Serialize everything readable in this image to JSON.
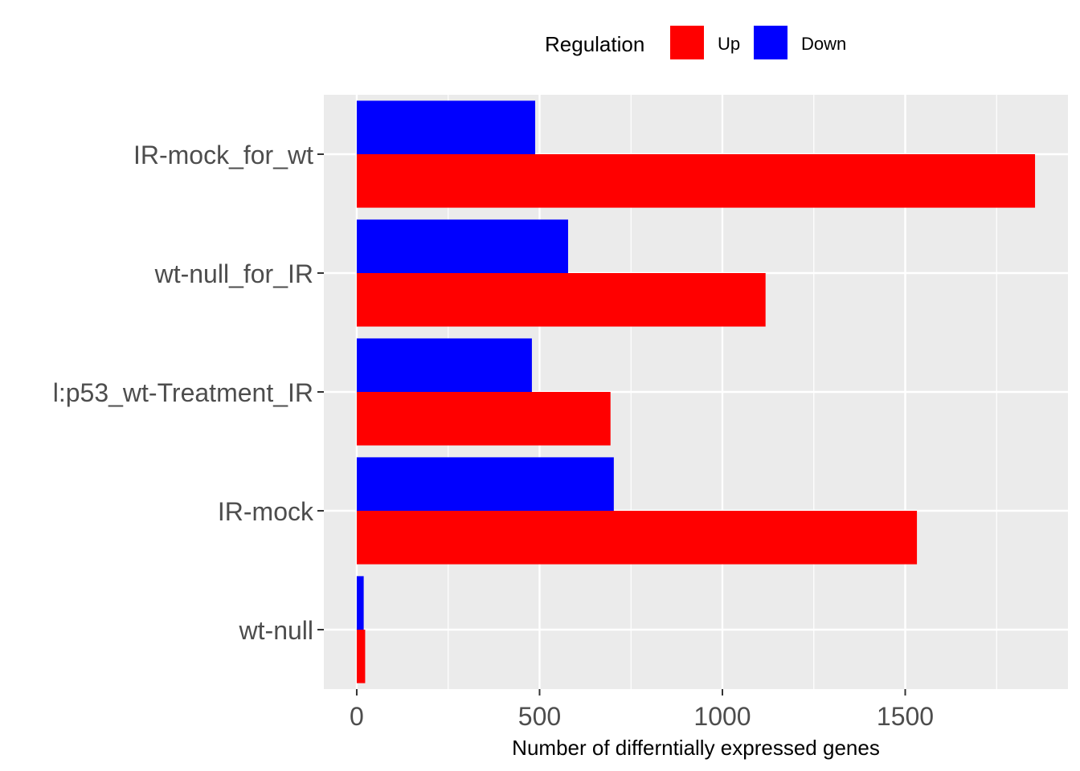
{
  "chart_data": {
    "type": "bar",
    "orientation": "horizontal",
    "categories": [
      "IR-mock_for_wt",
      "wt-null_for_IR",
      "l:p53_wt-Treatment_IR",
      "IR-mock",
      "wt-null"
    ],
    "series": [
      {
        "name": "Up",
        "color": "#ff0000",
        "values": [
          1855,
          1118,
          694,
          1532,
          23
        ]
      },
      {
        "name": "Down",
        "color": "#0000ff",
        "values": [
          488,
          578,
          479,
          703,
          19
        ]
      }
    ],
    "xlabel": "Number of differntially expressed genes",
    "ylabel": "",
    "xlim": [
      -90,
      1945
    ],
    "x_ticks": [
      0,
      500,
      1000,
      1500
    ],
    "x_tick_labels": [
      "0",
      "500",
      "1000",
      "1500"
    ],
    "legend": {
      "title": "Regulation",
      "position": "top"
    },
    "panel_background": "#ebebeb",
    "grid": true
  }
}
